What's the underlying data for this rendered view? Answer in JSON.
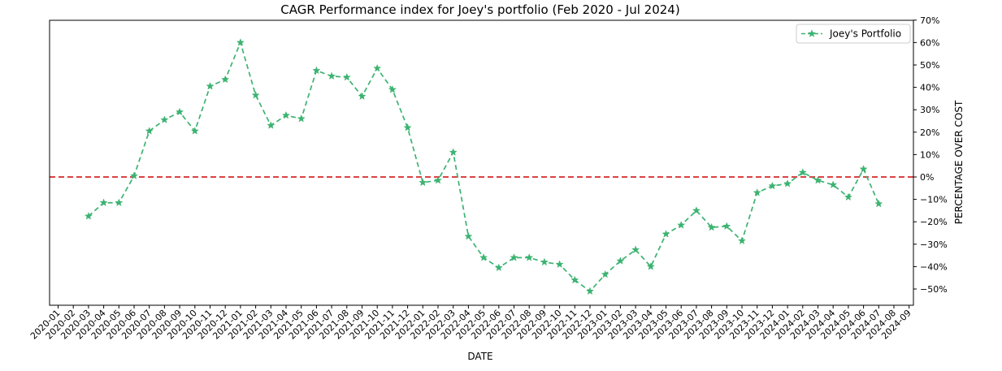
{
  "chart_data": {
    "type": "line",
    "title": "CAGR Performance index for Joey's portfolio (Feb 2020 - Jul 2024)",
    "xlabel": "DATE",
    "ylabel": "PERCENTAGE OVER COST",
    "ylim": [
      -57,
      70
    ],
    "y_ticks": [
      70,
      60,
      50,
      40,
      30,
      20,
      10,
      0,
      -10,
      -20,
      -30,
      -40,
      -50
    ],
    "y_tick_labels": [
      "70%",
      "60%",
      "50%",
      "40%",
      "30%",
      "20%",
      "10%",
      "0%",
      "−10%",
      "−20%",
      "−30%",
      "−40%",
      "−50%"
    ],
    "x_ticks": [
      "2020-01",
      "2020-02",
      "2020-03",
      "2020-04",
      "2020-05",
      "2020-06",
      "2020-07",
      "2020-08",
      "2020-09",
      "2020-10",
      "2020-11",
      "2020-12",
      "2021-01",
      "2021-02",
      "2021-03",
      "2021-04",
      "2021-05",
      "2021-06",
      "2021-07",
      "2021-08",
      "2021-09",
      "2021-10",
      "2021-11",
      "2021-12",
      "2022-01",
      "2022-02",
      "2022-03",
      "2022-04",
      "2022-05",
      "2022-06",
      "2022-07",
      "2022-08",
      "2022-09",
      "2022-10",
      "2022-11",
      "2022-12",
      "2023-01",
      "2023-02",
      "2023-03",
      "2023-04",
      "2023-05",
      "2023-06",
      "2023-07",
      "2023-08",
      "2023-09",
      "2023-10",
      "2023-11",
      "2023-12",
      "2024-01",
      "2024-02",
      "2024-03",
      "2024-04",
      "2024-05",
      "2024-06",
      "2024-07",
      "2024-08",
      "2024-09"
    ],
    "legend_position": "top-right",
    "grid": false,
    "reference_line": {
      "y": 0,
      "color": "#d62728",
      "style": "dashed"
    },
    "series": [
      {
        "name": "Joey's Portfolio",
        "color": "#3cb371",
        "line_style": "dashed",
        "marker": "star",
        "x": [
          "2020-03",
          "2020-04",
          "2020-05",
          "2020-06",
          "2020-07",
          "2020-08",
          "2020-09",
          "2020-10",
          "2020-11",
          "2020-12",
          "2021-01",
          "2021-02",
          "2021-03",
          "2021-04",
          "2021-05",
          "2021-06",
          "2021-07",
          "2021-08",
          "2021-09",
          "2021-10",
          "2021-11",
          "2021-12",
          "2022-01",
          "2022-02",
          "2022-03",
          "2022-04",
          "2022-05",
          "2022-06",
          "2022-07",
          "2022-08",
          "2022-09",
          "2022-10",
          "2022-11",
          "2022-12",
          "2023-01",
          "2023-02",
          "2023-03",
          "2023-04",
          "2023-05",
          "2023-06",
          "2023-07",
          "2023-08",
          "2023-09",
          "2023-10",
          "2023-11",
          "2023-12",
          "2024-01",
          "2024-02",
          "2024-03",
          "2024-04",
          "2024-05",
          "2024-06",
          "2024-07"
        ],
        "values": [
          -17.5,
          -11.5,
          -11.5,
          0.5,
          20.5,
          25.5,
          29,
          20.5,
          40.5,
          43.5,
          60,
          36.5,
          23,
          27.5,
          26,
          47.5,
          45,
          44.5,
          36,
          48.5,
          39,
          22,
          -2.5,
          -1.5,
          11,
          -26.5,
          -36,
          -40.5,
          -36,
          -36,
          -38,
          -39,
          -46,
          -51,
          -43.5,
          -37.5,
          -32.5,
          -40,
          -25.5,
          -21.5,
          -15,
          -22.5,
          -22,
          -28.5,
          -7,
          -4,
          -3,
          2,
          -1.5,
          -3.5,
          -9,
          3.5,
          -12
        ]
      }
    ]
  }
}
